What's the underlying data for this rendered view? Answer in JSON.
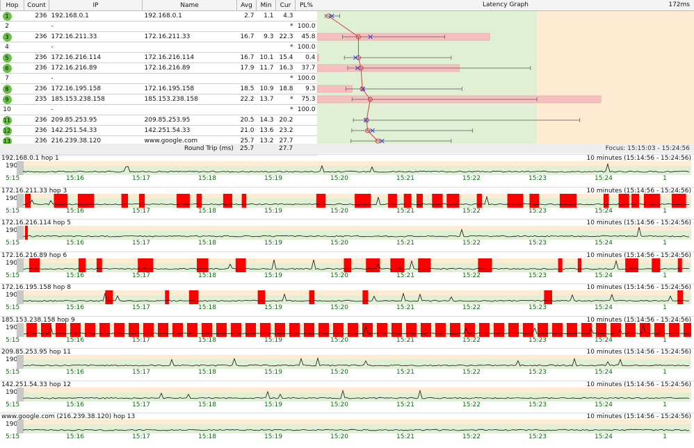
{
  "headers": {
    "hop": "Hop",
    "count": "Count",
    "ip": "IP",
    "name": "Name",
    "avg": "Avg",
    "min": "Min",
    "cur": "Cur",
    "pl": "PL%",
    "graph": "Latency Graph",
    "max": "172ms"
  },
  "hops": [
    {
      "hop": "1",
      "count": "236",
      "ip": "192.168.0.1",
      "name": "192.168.0.1",
      "avg": "2.7",
      "min": "1.1",
      "cur": "4.3",
      "pl": "",
      "ok": true,
      "avgv": 2.7,
      "minv": 1.1,
      "curv": 4.3,
      "maxv": 8,
      "plv": 0
    },
    {
      "hop": "2",
      "count": "",
      "ip": "-",
      "name": "",
      "avg": "",
      "min": "",
      "cur": "*",
      "pl": "100.0",
      "ok": false
    },
    {
      "hop": "3",
      "count": "236",
      "ip": "172.16.211.33",
      "name": "172.16.211.33",
      "avg": "16.7",
      "min": "9.3",
      "cur": "22.3",
      "pl": "45.8",
      "ok": true,
      "avgv": 16.7,
      "minv": 9.3,
      "curv": 22.3,
      "maxv": 57,
      "plv": 45.8
    },
    {
      "hop": "4",
      "count": "",
      "ip": "-",
      "name": "",
      "avg": "",
      "min": "",
      "cur": "*",
      "pl": "100.0",
      "ok": false
    },
    {
      "hop": "5",
      "count": "236",
      "ip": "172.16.216.114",
      "name": "172.16.216.114",
      "avg": "16.7",
      "min": "10.1",
      "cur": "15.4",
      "pl": "0.4",
      "ok": true,
      "avgv": 16.7,
      "minv": 10.1,
      "curv": 15.4,
      "maxv": 60,
      "plv": 0.4
    },
    {
      "hop": "6",
      "count": "236",
      "ip": "172.16.216.89",
      "name": "172.16.216.89",
      "avg": "17.9",
      "min": "11.7",
      "cur": "16.3",
      "pl": "37.7",
      "ok": true,
      "avgv": 17.9,
      "minv": 11.7,
      "curv": 16.3,
      "maxv": 97,
      "plv": 37.7
    },
    {
      "hop": "7",
      "count": "",
      "ip": "-",
      "name": "",
      "avg": "",
      "min": "",
      "cur": "*",
      "pl": "100.0",
      "ok": false
    },
    {
      "hop": "8",
      "count": "236",
      "ip": "172.16.195.158",
      "name": "172.16.195.158",
      "avg": "18.5",
      "min": "10.9",
      "cur": "18.8",
      "pl": "9.3",
      "ok": true,
      "avgv": 18.5,
      "minv": 10.9,
      "curv": 18.8,
      "maxv": 65,
      "plv": 9.3
    },
    {
      "hop": "9",
      "count": "235",
      "ip": "185.153.238.158",
      "name": "185.153.238.158",
      "avg": "22.2",
      "min": "13.7",
      "cur": "*",
      "pl": "75.3",
      "ok": true,
      "avgv": 22.2,
      "minv": 13.7,
      "curv": null,
      "maxv": 100,
      "plv": 75.3
    },
    {
      "hop": "10",
      "count": "",
      "ip": "-",
      "name": "",
      "avg": "",
      "min": "",
      "cur": "*",
      "pl": "100.0",
      "ok": false
    },
    {
      "hop": "11",
      "count": "236",
      "ip": "209.85.253.95",
      "name": "209.85.253.95",
      "avg": "20.5",
      "min": "14.3",
      "cur": "20.2",
      "pl": "",
      "ok": true,
      "avgv": 20.5,
      "minv": 14.3,
      "curv": 20.2,
      "maxv": 120,
      "plv": 0
    },
    {
      "hop": "12",
      "count": "236",
      "ip": "142.251.54.33",
      "name": "142.251.54.33",
      "avg": "21.0",
      "min": "13.6",
      "cur": "23.2",
      "pl": "",
      "ok": true,
      "avgv": 21.0,
      "minv": 13.6,
      "curv": 23.2,
      "maxv": 70,
      "plv": 0
    },
    {
      "hop": "13",
      "count": "236",
      "ip": "216.239.38.120",
      "name": "www.google.com",
      "avg": "25.7",
      "min": "13.2",
      "cur": "27.7",
      "pl": "",
      "ok": true,
      "avgv": 25.7,
      "minv": 13.2,
      "curv": 27.7,
      "maxv": 60,
      "plv": 0
    }
  ],
  "roundtrip": {
    "label": "Round Trip (ms)",
    "avg": "25.7",
    "cur": "27.7"
  },
  "focus": "Focus: 15:15:03 - 15:24:56",
  "latency_scale_max": 172,
  "colors": {
    "good": "#dff0d4",
    "warn": "#fdebd2",
    "loss": "#ff0000",
    "hopgreen": "#6cc04a",
    "avg": "#d04040",
    "cur": "#3a3ae0"
  },
  "timelines": [
    {
      "name": "192.168.0.1 hop 1",
      "range": "10 minutes (15:14:56 - 15:24:56)",
      "pattern": "none"
    },
    {
      "name": "172.16.211.33 hop 3",
      "range": "10 minutes (15:14:56 - 15:24:56)",
      "pattern": "heavy"
    },
    {
      "name": "172.16.216.114 hop 5",
      "range": "10 minutes (15:14:56 - 15:24:56)",
      "pattern": "single"
    },
    {
      "name": "172.16.216.89 hop 6",
      "range": "10 minutes (15:14:56 - 15:24:56)",
      "pattern": "medium"
    },
    {
      "name": "172.16.195.158 hop 8",
      "range": "10 minutes (15:14:56 - 15:24:56)",
      "pattern": "light"
    },
    {
      "name": "185.153.238.158 hop 9",
      "range": "10 minutes (15:14:56 - 15:24:56)",
      "pattern": "full"
    },
    {
      "name": "209.85.253.95 hop 11",
      "range": "10 minutes (15:14:56 - 15:24:56)",
      "pattern": "none"
    },
    {
      "name": "142.251.54.33 hop 12",
      "range": "10 minutes (15:14:56 - 15:24:56)",
      "pattern": "none"
    },
    {
      "name": "www.google.com (216.239.38.120) hop 13",
      "range": "10 minutes (15:14:56 - 15:24:56)",
      "pattern": "none"
    }
  ],
  "timeline_labels": {
    "y_top": "190",
    "threshold": "30"
  },
  "ticks": [
    "5:15",
    "15:16",
    "15:17",
    "15:18",
    "15:19",
    "15:20",
    "15:21",
    "15:22",
    "15:23",
    "15:24",
    "1"
  ]
}
